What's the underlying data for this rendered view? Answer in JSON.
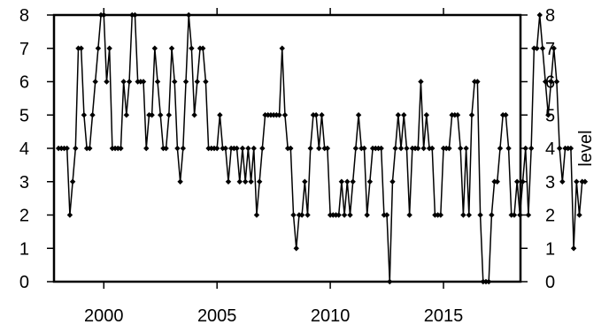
{
  "chart_data": {
    "type": "line",
    "ylabel": "level",
    "xlabel": "",
    "xlim": [
      1997.8,
      2018.4
    ],
    "ylim": [
      0,
      8
    ],
    "x_ticks": [
      2000,
      2005,
      2010,
      2015
    ],
    "x_tick_labels": [
      "2000",
      "2005",
      "2010",
      "2015"
    ],
    "y_ticks": [
      0,
      1,
      2,
      3,
      4,
      5,
      6,
      7,
      8
    ],
    "y_tick_labels": [
      "0",
      "1",
      "2",
      "3",
      "4",
      "5",
      "6",
      "7",
      "8"
    ],
    "grid": false,
    "marker": "diamond",
    "line_color": "#000000",
    "x_start": 1998.0,
    "x_step": 0.125,
    "series": [
      {
        "values": [
          4,
          4,
          4,
          4,
          2,
          3,
          4,
          7,
          7,
          5,
          4,
          4,
          5,
          6,
          7,
          8,
          8,
          6,
          7,
          4,
          4,
          4,
          4,
          6,
          5,
          6,
          8,
          8,
          6,
          6,
          6,
          4,
          5,
          5,
          7,
          6,
          5,
          4,
          4,
          5,
          7,
          6,
          4,
          3,
          4,
          6,
          8,
          7,
          5,
          6,
          7,
          7,
          6,
          4,
          4,
          4,
          4,
          5,
          4,
          4,
          3,
          4,
          4,
          4,
          3,
          4,
          3,
          4,
          3,
          4,
          2,
          3,
          4,
          5,
          5,
          5,
          5,
          5,
          5,
          7,
          5,
          4,
          4,
          2,
          1,
          2,
          2,
          3,
          2,
          4,
          5,
          5,
          4,
          5,
          4,
          4,
          2,
          2,
          2,
          2,
          3,
          2,
          3,
          2,
          3,
          4,
          5,
          4,
          4,
          2,
          3,
          4,
          4,
          4,
          4,
          2,
          2,
          0,
          3,
          4,
          5,
          4,
          5,
          4,
          2,
          4,
          4,
          4,
          6,
          4,
          5,
          4,
          4,
          2,
          2,
          2,
          4,
          4,
          4,
          5,
          5,
          5,
          4,
          2,
          4,
          2,
          5,
          6,
          6,
          2,
          0,
          0,
          0,
          2,
          3,
          3,
          4,
          5,
          5,
          4,
          2,
          2,
          3,
          2,
          3,
          4,
          2,
          4,
          7,
          7,
          8,
          7,
          6,
          5,
          6,
          7,
          6,
          4,
          3,
          4,
          4,
          4,
          1,
          3,
          2,
          3,
          3
        ]
      }
    ]
  }
}
